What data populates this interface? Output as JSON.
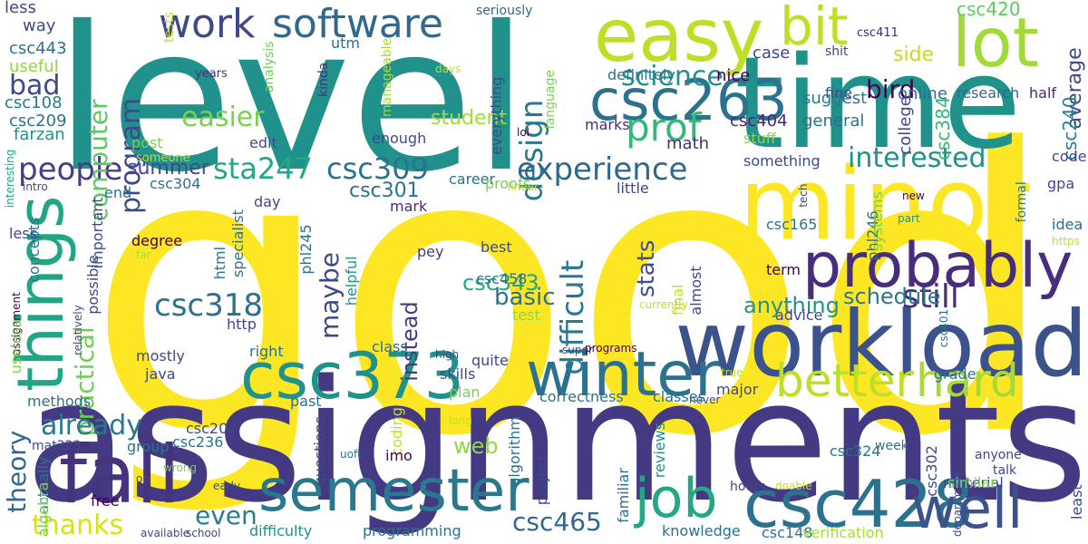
{
  "words": [
    {
      "text": "good",
      "color": "#fde725"
    },
    {
      "text": "level",
      "color": "#21918c"
    },
    {
      "text": "assignments",
      "color": "#443983"
    },
    {
      "text": "time",
      "color": "#21918c"
    },
    {
      "text": "minor",
      "color": "#fde725"
    },
    {
      "text": "workload",
      "color": "#3b528b"
    },
    {
      "text": "probably",
      "color": "#472d7b"
    },
    {
      "text": "easy",
      "color": "#bddf26"
    },
    {
      "text": "lot",
      "color": "#a2da37"
    },
    {
      "text": "fall",
      "color": "#46337e"
    },
    {
      "text": "things",
      "color": "#21a685"
    },
    {
      "text": "csc263",
      "color": "#2c728e"
    },
    {
      "text": "csc373",
      "color": "#21918c"
    },
    {
      "text": "winter",
      "color": "#2c728e"
    },
    {
      "text": "csc428",
      "color": "#2c728e"
    },
    {
      "text": "semester",
      "color": "#2a788e"
    },
    {
      "text": "well",
      "color": "#3b528b"
    },
    {
      "text": "job",
      "color": "#22a884"
    },
    {
      "text": "bit",
      "color": "#bddf26"
    },
    {
      "text": "work",
      "color": "#3e4989"
    },
    {
      "text": "software",
      "color": "#31688e"
    },
    {
      "text": "better",
      "color": "#bddf26"
    },
    {
      "text": "hard",
      "color": "#a5db36"
    },
    {
      "text": "design",
      "color": "#2a788e"
    },
    {
      "text": "prof",
      "color": "#35b779"
    },
    {
      "text": "people",
      "color": "#433e85"
    },
    {
      "text": "experience",
      "color": "#31688e"
    },
    {
      "text": "difficult",
      "color": "#2a788e"
    },
    {
      "text": "csc318",
      "color": "#2c728e"
    },
    {
      "text": "csc309",
      "color": "#2c728e"
    },
    {
      "text": "sta247",
      "color": "#22a884"
    },
    {
      "text": "interested",
      "color": "#21918c"
    },
    {
      "text": "still",
      "color": "#472d7b"
    },
    {
      "text": "easier",
      "color": "#7ad151"
    },
    {
      "text": "computer",
      "color": "#5ec962"
    },
    {
      "text": "program",
      "color": "#3e4989"
    },
    {
      "text": "science",
      "color": "#21918c"
    },
    {
      "text": "bad",
      "color": "#3e4989"
    },
    {
      "text": "bird",
      "color": "#440154"
    },
    {
      "text": "thanks",
      "color": "#d8e219"
    },
    {
      "text": "theory",
      "color": "#31688e"
    },
    {
      "text": "practical",
      "color": "#6ece58"
    },
    {
      "text": "already",
      "color": "#2a788e"
    },
    {
      "text": "maybe",
      "color": "#3e4989"
    },
    {
      "text": "csc465",
      "color": "#31688e"
    },
    {
      "text": "even",
      "color": "#287d8e"
    },
    {
      "text": "stats",
      "color": "#3b528b"
    },
    {
      "text": "schedule",
      "color": "#2a788e"
    },
    {
      "text": "anything",
      "color": "#21918c"
    },
    {
      "text": "csc343",
      "color": "#22a884"
    },
    {
      "text": "basic",
      "color": "#2c728e"
    },
    {
      "text": "instead",
      "color": "#443983"
    },
    {
      "text": "web",
      "color": "#90d743"
    },
    {
      "text": "summer",
      "color": "#3e4989"
    },
    {
      "text": "csc301",
      "color": "#2c728e"
    },
    {
      "text": "student",
      "color": "#a5db36"
    },
    {
      "text": "side",
      "color": "#c2df23"
    },
    {
      "text": "csc384",
      "color": "#35b779"
    },
    {
      "text": "average",
      "color": "#3e4989"
    },
    {
      "text": "csc420",
      "color": "#5ec962"
    },
    {
      "text": "csc240",
      "color": "#287d8e"
    },
    {
      "text": "online",
      "color": "#2c728e"
    },
    {
      "text": "research",
      "color": "#31688e"
    },
    {
      "text": "half",
      "color": "#482878"
    },
    {
      "text": "college",
      "color": "#3e4989"
    },
    {
      "text": "suggest",
      "color": "#2a788e"
    },
    {
      "text": "general",
      "color": "#2c728e"
    },
    {
      "text": "csc404",
      "color": "#482475"
    },
    {
      "text": "nice",
      "color": "#440154"
    },
    {
      "text": "case",
      "color": "#3e4989"
    },
    {
      "text": "fine",
      "color": "#3e4989"
    },
    {
      "text": "shit",
      "color": "#3e4989"
    },
    {
      "text": "csc411",
      "color": "#482475"
    },
    {
      "text": "math",
      "color": "#472d7b"
    },
    {
      "text": "marks",
      "color": "#472d7b"
    },
    {
      "text": "stuff",
      "color": "#90d743"
    },
    {
      "text": "definitely",
      "color": "#2c728e"
    },
    {
      "text": "something",
      "color": "#3e4989"
    },
    {
      "text": "code",
      "color": "#3e4989"
    },
    {
      "text": "csc443",
      "color": "#2c728e"
    },
    {
      "text": "way",
      "color": "#3e4989"
    },
    {
      "text": "less",
      "color": "#3e4989"
    },
    {
      "text": "useful",
      "color": "#90d743"
    },
    {
      "text": "csc108",
      "color": "#2a788e"
    },
    {
      "text": "csc209",
      "color": "#2c728e"
    },
    {
      "text": "farzan",
      "color": "#21918c"
    },
    {
      "text": "utm",
      "color": "#31688e"
    },
    {
      "text": "seriously",
      "color": "#31688e"
    },
    {
      "text": "tests",
      "color": "#c2df23"
    },
    {
      "text": "analysis",
      "color": "#6ece58"
    },
    {
      "text": "manageable",
      "color": "#a5db36"
    },
    {
      "text": "kinda",
      "color": "#46337e"
    },
    {
      "text": "years",
      "color": "#472d7b"
    },
    {
      "text": "days",
      "color": "#c2df23"
    },
    {
      "text": "everything",
      "color": "#3e4989"
    },
    {
      "text": "language",
      "color": "#7ad151"
    },
    {
      "text": "enough",
      "color": "#3e4989"
    },
    {
      "text": "lol",
      "color": "#440154"
    },
    {
      "text": "edit",
      "color": "#3e4989"
    },
    {
      "text": "post",
      "color": "#7ad151"
    },
    {
      "text": "someone",
      "color": "#c2df23"
    },
    {
      "text": "interesting",
      "color": "#22a884"
    },
    {
      "text": "intro",
      "color": "#3e4989"
    },
    {
      "text": "end",
      "color": "#2c728e"
    },
    {
      "text": "csc304",
      "color": "#2c728e"
    },
    {
      "text": "day",
      "color": "#3e4989"
    },
    {
      "text": "career",
      "color": "#2c728e"
    },
    {
      "text": "proofs",
      "color": "#7ad151"
    },
    {
      "text": "linear",
      "color": "#c2df23"
    },
    {
      "text": "little",
      "color": "#3e4989"
    },
    {
      "text": "mark",
      "color": "#472d7b"
    },
    {
      "text": "specialist",
      "color": "#2c728e"
    },
    {
      "text": "important",
      "color": "#3e4989"
    },
    {
      "text": "concepts",
      "color": "#2c728e"
    },
    {
      "text": "less",
      "color": "#3e4989"
    },
    {
      "text": "degree",
      "color": "#440154"
    },
    {
      "text": "far",
      "color": "#a5db36"
    },
    {
      "text": "possible",
      "color": "#3e4989"
    },
    {
      "text": "relatively",
      "color": "#3e4989"
    },
    {
      "text": "assignment",
      "color": "#440154"
    },
    {
      "text": "html",
      "color": "#2c728e"
    },
    {
      "text": "phl245",
      "color": "#2c728e"
    },
    {
      "text": "helpful",
      "color": "#21918c"
    },
    {
      "text": "pey",
      "color": "#443983"
    },
    {
      "text": "best",
      "color": "#3e4989"
    },
    {
      "text": "csc458",
      "color": "#2c728e"
    },
    {
      "text": "final",
      "color": "#c2df23"
    },
    {
      "text": "almost",
      "color": "#3e4989"
    },
    {
      "text": "csc165",
      "color": "#2c728e"
    },
    {
      "text": "term",
      "color": "#440154"
    },
    {
      "text": "advice",
      "color": "#3e4989"
    },
    {
      "text": "tech",
      "color": "#3e4989"
    },
    {
      "text": "phl246",
      "color": "#2c728e"
    },
    {
      "text": "systems",
      "color": "#7ad151"
    },
    {
      "text": "new",
      "color": "#440154"
    },
    {
      "text": "part",
      "color": "#21918c"
    },
    {
      "text": "formal",
      "color": "#2c728e"
    },
    {
      "text": "gpa",
      "color": "#3e4989"
    },
    {
      "text": "idea",
      "color": "#31688e"
    },
    {
      "text": "https",
      "color": "#c2df23"
    },
    {
      "text": "http",
      "color": "#3e4989"
    },
    {
      "text": "test",
      "color": "#90d743"
    },
    {
      "text": "currently",
      "color": "#c2df23"
    },
    {
      "text": "csc401",
      "color": "#2c728e"
    },
    {
      "text": "useless",
      "color": "#7ad151"
    },
    {
      "text": "right",
      "color": "#2c728e"
    },
    {
      "text": "class",
      "color": "#2c728e"
    },
    {
      "text": "super",
      "color": "#3e4989"
    },
    {
      "text": "programs",
      "color": "#440154"
    },
    {
      "text": "mostly",
      "color": "#3e4989"
    },
    {
      "text": "java",
      "color": "#3e4989"
    },
    {
      "text": "high",
      "color": "#3e4989"
    },
    {
      "text": "quite",
      "color": "#3e4989"
    },
    {
      "text": "skills",
      "color": "#3e4989"
    },
    {
      "text": "past",
      "color": "#2c728e"
    },
    {
      "text": "plan",
      "color": "#7ad151"
    },
    {
      "text": "true",
      "color": "#c2df23"
    },
    {
      "text": "grade",
      "color": "#2c728e"
    },
    {
      "text": "methods",
      "color": "#2c728e"
    },
    {
      "text": "never",
      "color": "#3e4989"
    },
    {
      "text": "correctness",
      "color": "#2c728e"
    },
    {
      "text": "classes",
      "color": "#2c728e"
    },
    {
      "text": "major",
      "color": "#3e4989"
    },
    {
      "text": "algorithm",
      "color": "#2c728e"
    },
    {
      "text": "coding",
      "color": "#c2df23"
    },
    {
      "text": "long",
      "color": "#c2df23"
    },
    {
      "text": "csc207",
      "color": "#3e4989"
    },
    {
      "text": "csc236",
      "color": "#2c728e"
    },
    {
      "text": "group",
      "color": "#2c728e"
    },
    {
      "text": "mat223",
      "color": "#3e4989"
    },
    {
      "text": "actually",
      "color": "#2c728e"
    },
    {
      "text": "algebra",
      "color": "#7ad151"
    },
    {
      "text": "questions",
      "color": "#3e4989"
    },
    {
      "text": "uoft",
      "color": "#2c728e"
    },
    {
      "text": "imo",
      "color": "#440154"
    },
    {
      "text": "project",
      "color": "#3e4989"
    },
    {
      "text": "familiar",
      "color": "#2c728e"
    },
    {
      "text": "reviews",
      "color": "#21918c"
    },
    {
      "text": "csc302",
      "color": "#3e4989"
    },
    {
      "text": "csc324",
      "color": "#2c728e"
    },
    {
      "text": "anyone",
      "color": "#3e4989"
    },
    {
      "text": "talk",
      "color": "#3e4989"
    },
    {
      "text": "department",
      "color": "#3e4989"
    },
    {
      "text": "week",
      "color": "#2c728e"
    },
    {
      "text": "material",
      "color": "#3e4989"
    },
    {
      "text": "similar",
      "color": "#7ad151"
    },
    {
      "text": "least",
      "color": "#3e4989"
    },
    {
      "text": "oh",
      "color": "#3e4989"
    },
    {
      "text": "wrong",
      "color": "#7ad151"
    },
    {
      "text": "free",
      "color": "#440154"
    },
    {
      "text": "early",
      "color": "#3e4989"
    },
    {
      "text": "available",
      "color": "#3e4989"
    },
    {
      "text": "school",
      "color": "#3e4989"
    },
    {
      "text": "difficulty",
      "color": "#21918c"
    },
    {
      "text": "programming",
      "color": "#2c728e"
    },
    {
      "text": "knowledge",
      "color": "#2c728e"
    },
    {
      "text": "csc148",
      "color": "#2c728e"
    },
    {
      "text": "hours",
      "color": "#3e4989"
    },
    {
      "text": "doable",
      "color": "#c2df23"
    },
    {
      "text": "verification",
      "color": "#a5db36"
    }
  ]
}
